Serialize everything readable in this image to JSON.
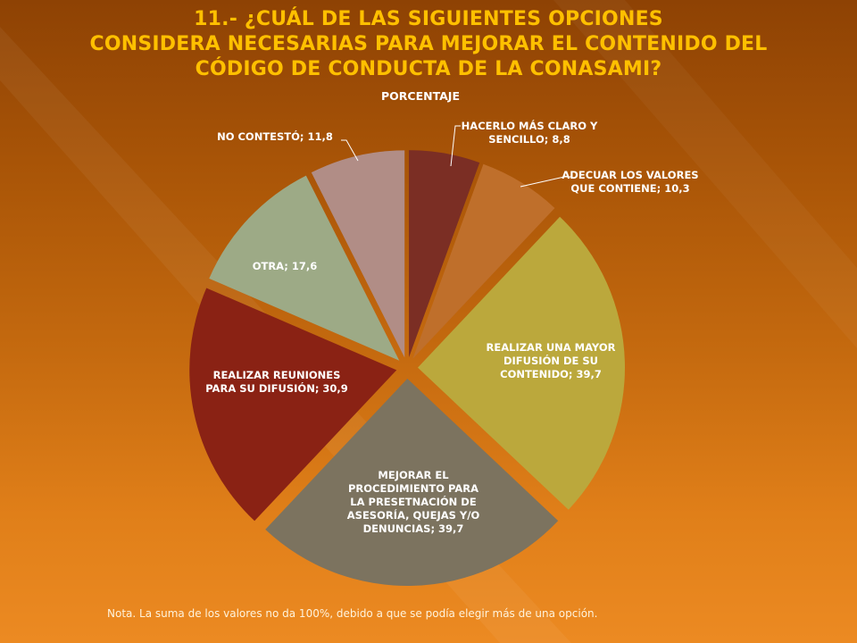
{
  "slide": {
    "title_lines": [
      "11.- ¿CUÁL DE LAS SIGUIENTES OPCIONES",
      "CONSIDERA NECESARIAS PARA MEJORAR EL CONTENIDO DEL",
      "CÓDIGO DE CONDUCTA DE LA CONASAMI?"
    ],
    "note": "Nota. La suma  de los valores no da 100%, debido a que se podía elegir más de una opción."
  },
  "colors": {
    "title": "#ffc000",
    "label_text": "#ffffff",
    "leader": "#ffffff"
  },
  "chart_data": {
    "type": "pie",
    "title": "PORCENTAJE",
    "legend": "none",
    "exploded": true,
    "slices": [
      {
        "label": "HACERLO MÁS CLARO Y SENCILLO",
        "value": 8.8,
        "value_text": "8,8",
        "color": "#7b2e24",
        "label_lines": [
          "HACERLO MÁS CLARO Y",
          "SENCILLO; 8,8"
        ]
      },
      {
        "label": "ADECUAR LOS VALORES QUE CONTIENE",
        "value": 10.3,
        "value_text": "10,3",
        "color": "#bf6f2b",
        "label_lines": [
          "ADECUAR LOS VALORES",
          "QUE CONTIENE; 10,3"
        ]
      },
      {
        "label": "REALIZAR UNA MAYOR DIFUSIÓN DE SU CONTENIDO",
        "value": 39.7,
        "value_text": "39,7",
        "color": "#bba83c",
        "label_lines": [
          "REALIZAR UNA MAYOR",
          "DIFUSIÓN DE SU",
          "CONTENIDO; 39,7"
        ]
      },
      {
        "label": "MEJORAR EL PROCEDIMIENTO PARA LA PRESETNACIÓN DE ASESORÍA, QUEJAS Y/O DENUNCIAS",
        "value": 39.7,
        "value_text": "39,7",
        "color": "#7c735f",
        "label_lines": [
          "MEJORAR EL",
          "PROCEDIMIENTO PARA",
          "LA PRESETNACIÓN DE",
          "ASESORÍA, QUEJAS Y/O",
          "DENUNCIAS; 39,7"
        ]
      },
      {
        "label": "REALIZAR REUNIONES PARA SU DIFUSIÓN",
        "value": 30.9,
        "value_text": "30,9",
        "color": "#8a2214",
        "label_lines": [
          "REALIZAR REUNIONES",
          "PARA SU DIFUSIÓN; 30,9"
        ]
      },
      {
        "label": "OTRA",
        "value": 17.6,
        "value_text": "17,6",
        "color": "#9daa86",
        "label_lines": [
          "OTRA; 17,6"
        ]
      },
      {
        "label": "NO CONTESTÓ",
        "value": 11.8,
        "value_text": "11,8",
        "color": "#b18d86",
        "label_lines": [
          "NO CONTESTÓ; 11,8"
        ]
      }
    ]
  }
}
